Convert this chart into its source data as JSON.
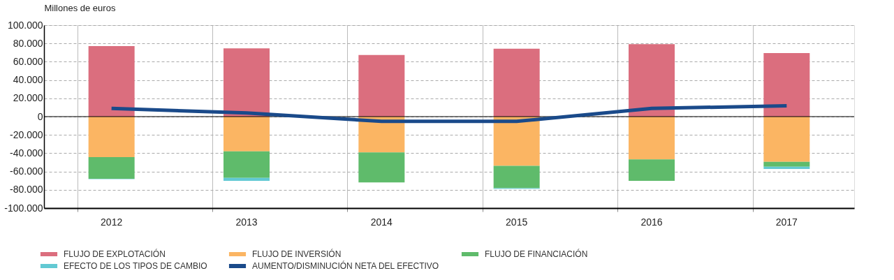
{
  "chart_data": {
    "type": "bar",
    "stacked": true,
    "ylabel": "Millones de euros",
    "categories": [
      "2012",
      "2013",
      "2014",
      "2015",
      "2016",
      "2017"
    ],
    "series": [
      {
        "name": "FLUJO DE EXPLOTACIÓN",
        "color": "#db6e7e",
        "values": [
          77100,
          74600,
          67300,
          74300,
          79200,
          69400
        ]
      },
      {
        "name": "FLUJO DE INVERSIÓN",
        "color": "#fbb563",
        "values": [
          -44300,
          -37900,
          -39100,
          -53800,
          -46800,
          -49500
        ]
      },
      {
        "name": "FLUJO DE FINANCIACIÓN",
        "color": "#5fbb6b",
        "values": [
          -23600,
          -29100,
          -32800,
          -24500,
          -23500,
          -5200
        ]
      },
      {
        "name": "EFECTO DE LOS TIPOS DE CAMBIO",
        "color": "#62c9d3",
        "values": [
          -500,
          -3300,
          null,
          -800,
          null,
          -2500
        ]
      },
      {
        "name": "AUMENTO/DISMINUCIÓN NETA DEL EFECTIVO",
        "color": "#1a4a8a",
        "type": "line",
        "values": [
          8900,
          4000,
          -5200,
          -5200,
          8900,
          11900
        ]
      }
    ],
    "ylim": [
      -100000,
      100000
    ],
    "yticks": [
      {
        "value": -100000,
        "label": "-100.000"
      },
      {
        "value": -80000,
        "label": "-80.000"
      },
      {
        "value": -60000,
        "label": "-60.000"
      },
      {
        "value": -40000,
        "label": "-40.000"
      },
      {
        "value": -20000,
        "label": "-20.000"
      },
      0,
      {
        "value": 20000,
        "label": "20.000"
      },
      {
        "value": 40000,
        "label": "40.000"
      },
      {
        "value": 60000,
        "label": "60.000"
      },
      {
        "value": 80000,
        "label": "80.000"
      },
      {
        "value": 100000,
        "label": "100.000"
      }
    ],
    "ref_lines": [
      {
        "axis": "y",
        "value": 0,
        "color": "#000000"
      }
    ],
    "grid": true,
    "legend": "bottom"
  }
}
